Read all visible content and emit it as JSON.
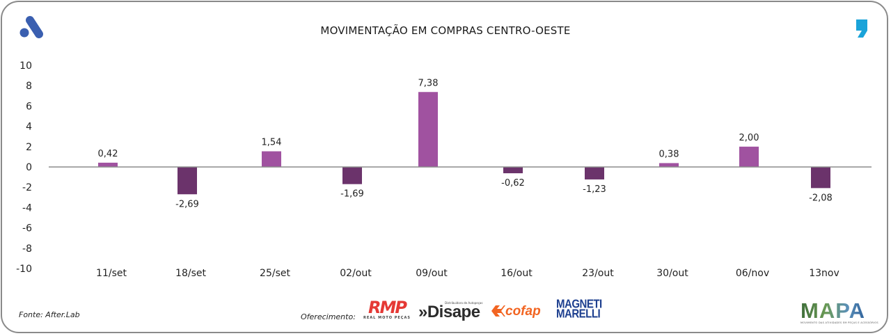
{
  "header": {
    "title": "MOVIMENTAÇÃO EM COMPRAS CENTRO-OESTE",
    "left_logo_icon": "brand-a-logo",
    "right_logo_icon": "brand-comma-logo"
  },
  "colors": {
    "positive_bar": "#a052a0",
    "negative_bar": "#6b336b",
    "zero_line": "#8c8c8c",
    "brand_blue": "#3a5fb0",
    "brand_cyan": "#1aa3d9"
  },
  "chart_data": {
    "type": "bar",
    "title": "MOVIMENTAÇÃO EM COMPRAS CENTRO-OESTE",
    "xlabel": "",
    "ylabel": "",
    "categories": [
      "11/set",
      "18/set",
      "25/set",
      "02/out",
      "09/out",
      "16/out",
      "23/out",
      "30/out",
      "06/nov",
      "13nov"
    ],
    "values": [
      0.42,
      -2.69,
      1.54,
      -1.69,
      7.38,
      -0.62,
      -1.23,
      0.38,
      2.0,
      -2.08
    ],
    "data_labels": [
      "0,42",
      "-2,69",
      "1,54",
      "-1,69",
      "7,38",
      "-0,62",
      "-1,23",
      "0,38",
      "2,00",
      "-2,08"
    ],
    "ylim": [
      -10,
      10
    ],
    "yticks": [
      10,
      8,
      6,
      4,
      2,
      0,
      -2,
      -4,
      -6,
      -8,
      -10
    ],
    "ytick_labels": [
      "10",
      "8",
      "6",
      "4",
      "2",
      "0",
      "-2",
      "-4",
      "-6",
      "-8",
      "-10"
    ],
    "grid": false,
    "legend": "none"
  },
  "footer": {
    "source": "Fonte: After.Lab",
    "sponsor_label": "Oferecimento:",
    "sponsors": [
      {
        "name": "RMP",
        "tagline": "REAL MOTO PEÇAS"
      },
      {
        "name": "»Disape",
        "tagline": "Distribuidora de Autopeças"
      },
      {
        "name": "cofap",
        "tagline": ""
      },
      {
        "name": "MAGNETI MARELLI",
        "line1": "MAGNETI",
        "line2": "MARELLI"
      }
    ],
    "mapa": {
      "name": "MAPA",
      "tagline": "MOVIMENTO DAS ATIVIDADES EM PEÇAS E ACESSÓRIOS"
    }
  }
}
